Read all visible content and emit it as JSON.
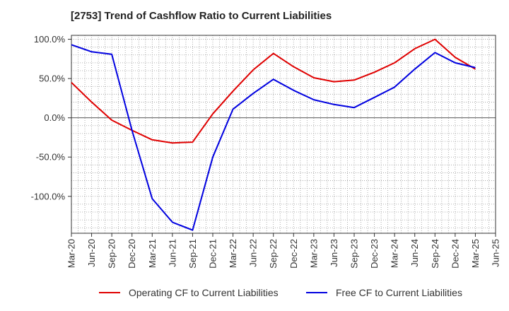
{
  "chart_data": {
    "type": "line",
    "title": "[2753]  Trend of Cashflow Ratio to Current Liabilities",
    "xlabel": "",
    "ylabel": "",
    "x": [
      "Mar-20",
      "Jun-20",
      "Sep-20",
      "Dec-20",
      "Mar-21",
      "Jun-21",
      "Sep-21",
      "Dec-21",
      "Mar-22",
      "Jun-22",
      "Sep-22",
      "Dec-22",
      "Mar-23",
      "Jun-23",
      "Sep-23",
      "Dec-23",
      "Mar-24",
      "Jun-24",
      "Sep-24",
      "Dec-24",
      "Mar-25"
    ],
    "x_ticks": [
      "Mar-20",
      "Jun-20",
      "Sep-20",
      "Dec-20",
      "Mar-21",
      "Jun-21",
      "Sep-21",
      "Dec-21",
      "Mar-22",
      "Jun-22",
      "Sep-22",
      "Dec-22",
      "Mar-23",
      "Jun-23",
      "Sep-23",
      "Dec-23",
      "Mar-24",
      "Jun-24",
      "Sep-24",
      "Dec-24",
      "Mar-25",
      "Jun-25"
    ],
    "y_ticks": [
      100,
      50,
      0,
      -50,
      -100
    ],
    "y_tick_labels": [
      "100.0%",
      "50.0%",
      "0.0%",
      "-50.0%",
      "-100.0%"
    ],
    "ylim": [
      -147,
      105
    ],
    "grid": true,
    "legend_position": "bottom",
    "series": [
      {
        "name": "Operating CF to Current Liabilities",
        "color": "#e00000",
        "values": [
          45,
          20,
          -3,
          -16,
          -28,
          -32,
          -31,
          5,
          34,
          61,
          82,
          65,
          51,
          46,
          48,
          58,
          70,
          88,
          100,
          77,
          62
        ]
      },
      {
        "name": "Free CF to Current Liabilities",
        "color": "#0000e0",
        "values": [
          93,
          84,
          81,
          -16,
          -103,
          -133,
          -143,
          -50,
          11,
          31,
          49,
          35,
          23,
          17,
          13,
          26,
          39,
          62,
          83,
          70,
          64
        ]
      }
    ]
  }
}
